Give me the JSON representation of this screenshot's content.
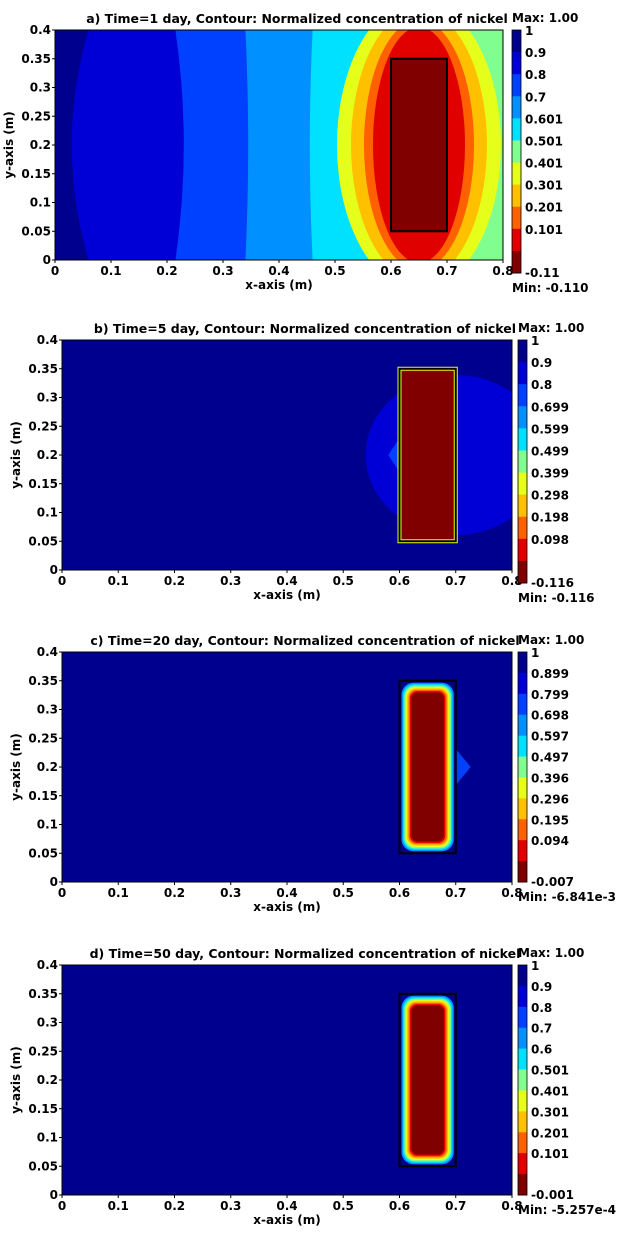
{
  "chart_data": [
    {
      "type": "contour",
      "title": "a) Time=1 day, Contour: Normalized concentration of nickel",
      "xlabel": "x-axis (m)",
      "ylabel": "y-axis (m)",
      "xlim": [
        0,
        0.8
      ],
      "ylim": [
        0,
        0.4
      ],
      "x_ticks": [
        "0",
        "0.1",
        "0.2",
        "0.3",
        "0.4",
        "0.5",
        "0.6",
        "0.7",
        "0.8"
      ],
      "y_ticks": [
        "0",
        "0.05",
        "0.1",
        "0.15",
        "0.2",
        "0.25",
        "0.3",
        "0.35",
        "0.4"
      ],
      "colorbar_levels": [
        "1",
        "0.9",
        "0.8",
        "0.7",
        "0.601",
        "0.501",
        "0.401",
        "0.301",
        "0.201",
        "0.101",
        "-0.11"
      ],
      "max_label": "Max: 1.00",
      "min_label": "Min: -0.110",
      "source_region": {
        "x": [
          0.6,
          0.7
        ],
        "y": [
          0.05,
          0.35
        ]
      },
      "time_days": 1,
      "diffusion_level": 1.0
    },
    {
      "type": "contour",
      "title": "b) Time=5 day, Contour: Normalized concentration of nickel",
      "xlabel": "x-axis (m)",
      "ylabel": "y-axis (m)",
      "xlim": [
        0,
        0.8
      ],
      "ylim": [
        0,
        0.4
      ],
      "x_ticks": [
        "0",
        "0.1",
        "0.2",
        "0.3",
        "0.4",
        "0.5",
        "0.6",
        "0.7",
        "0.8"
      ],
      "y_ticks": [
        "0",
        "0.05",
        "0.1",
        "0.15",
        "0.2",
        "0.25",
        "0.3",
        "0.35",
        "0.4"
      ],
      "colorbar_levels": [
        "1",
        "0.9",
        "0.8",
        "0.699",
        "0.599",
        "0.499",
        "0.399",
        "0.298",
        "0.198",
        "0.098",
        "-0.116"
      ],
      "max_label": "Max: 1.00",
      "min_label": "Min: -0.116",
      "source_region": {
        "x": [
          0.6,
          0.7
        ],
        "y": [
          0.05,
          0.35
        ]
      },
      "time_days": 5,
      "diffusion_level": 0.45
    },
    {
      "type": "contour",
      "title": "c) Time=20 day, Contour: Normalized concentration of nickel",
      "xlabel": "x-axis (m)",
      "ylabel": "y-axis (m)",
      "xlim": [
        0,
        0.8
      ],
      "ylim": [
        0,
        0.4
      ],
      "x_ticks": [
        "0",
        "0.1",
        "0.2",
        "0.3",
        "0.4",
        "0.5",
        "0.6",
        "0.7",
        "0.8"
      ],
      "y_ticks": [
        "0",
        "0.05",
        "0.1",
        "0.15",
        "0.2",
        "0.25",
        "0.3",
        "0.35",
        "0.4"
      ],
      "colorbar_levels": [
        "1",
        "0.899",
        "0.799",
        "0.698",
        "0.597",
        "0.497",
        "0.396",
        "0.296",
        "0.195",
        "0.094",
        "-0.007"
      ],
      "max_label": "Max: 1.00",
      "min_label": "Min: -6.841e-3",
      "source_region": {
        "x": [
          0.6,
          0.7
        ],
        "y": [
          0.05,
          0.35
        ]
      },
      "time_days": 20,
      "diffusion_level": 0.25
    },
    {
      "type": "contour",
      "title": "d) Time=50 day, Contour: Normalized concentration of nickel",
      "xlabel": "x-axis (m)",
      "ylabel": "y-axis (m)",
      "xlim": [
        0,
        0.8
      ],
      "ylim": [
        0,
        0.4
      ],
      "x_ticks": [
        "0",
        "0.1",
        "0.2",
        "0.3",
        "0.4",
        "0.5",
        "0.6",
        "0.7",
        "0.8"
      ],
      "y_ticks": [
        "0",
        "0.05",
        "0.1",
        "0.15",
        "0.2",
        "0.25",
        "0.3",
        "0.35",
        "0.4"
      ],
      "colorbar_levels": [
        "1",
        "0.9",
        "0.8",
        "0.7",
        "0.6",
        "0.501",
        "0.401",
        "0.301",
        "0.201",
        "0.101",
        "-0.001"
      ],
      "max_label": "Max: 1.00",
      "min_label": "Min: -5.257e-4",
      "source_region": {
        "x": [
          0.6,
          0.7
        ],
        "y": [
          0.05,
          0.35
        ]
      },
      "time_days": 50,
      "diffusion_level": 0.2
    }
  ],
  "colors": {
    "levels": [
      "#00008f",
      "#0000d6",
      "#0040ff",
      "#0090ff",
      "#00e0ff",
      "#80ff90",
      "#e6ff1a",
      "#ffc000",
      "#ff6000",
      "#e00000",
      "#800000"
    ]
  }
}
